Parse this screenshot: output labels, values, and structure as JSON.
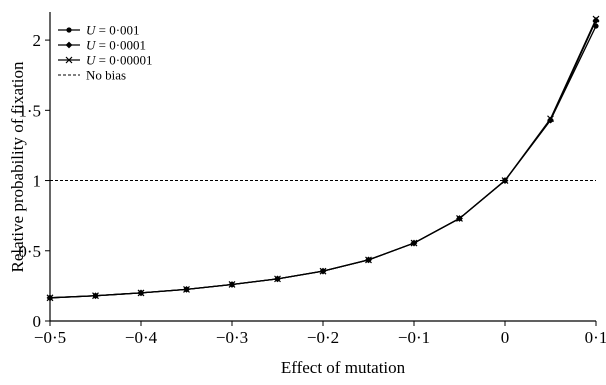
{
  "chart_data": {
    "type": "line",
    "xlabel": "Effect of mutation",
    "ylabel": "Relative probability of fixation",
    "xlim": [
      -0.5,
      0.1
    ],
    "ylim": [
      0,
      2.2
    ],
    "grid": false,
    "legend_position": "top-left",
    "x_ticks": [
      {
        "value": -0.5,
        "label": "−0·5"
      },
      {
        "value": -0.4,
        "label": "−0·4"
      },
      {
        "value": -0.3,
        "label": "−0·3"
      },
      {
        "value": -0.2,
        "label": "−0·2"
      },
      {
        "value": -0.1,
        "label": "−0·1"
      },
      {
        "value": 0,
        "label": "0"
      },
      {
        "value": 0.1,
        "label": "0·1"
      }
    ],
    "y_ticks": [
      {
        "value": 0,
        "label": "0"
      },
      {
        "value": 0.5,
        "label": "0·5"
      },
      {
        "value": 1,
        "label": "1"
      },
      {
        "value": 1.5,
        "label": "1·5"
      },
      {
        "value": 2,
        "label": "2"
      }
    ],
    "x": [
      -0.5,
      -0.45,
      -0.4,
      -0.35,
      -0.3,
      -0.25,
      -0.2,
      -0.15,
      -0.1,
      -0.05,
      0,
      0.05,
      0.1
    ],
    "series": [
      {
        "name": "U = 0·001",
        "marker": "circle",
        "values": [
          0.165,
          0.18,
          0.2,
          0.225,
          0.26,
          0.3,
          0.355,
          0.435,
          0.555,
          0.73,
          1.0,
          1.43,
          2.1
        ]
      },
      {
        "name": "U = 0·0001",
        "marker": "diamond",
        "values": [
          0.165,
          0.18,
          0.2,
          0.225,
          0.26,
          0.3,
          0.355,
          0.435,
          0.555,
          0.73,
          1.0,
          1.43,
          2.14
        ]
      },
      {
        "name": "U = 0·00001",
        "marker": "x",
        "values": [
          0.165,
          0.18,
          0.2,
          0.225,
          0.26,
          0.3,
          0.355,
          0.435,
          0.555,
          0.73,
          1.0,
          1.44,
          2.15
        ]
      }
    ],
    "reference_line": {
      "name": "No bias",
      "value": 1,
      "style": "dotted"
    }
  }
}
